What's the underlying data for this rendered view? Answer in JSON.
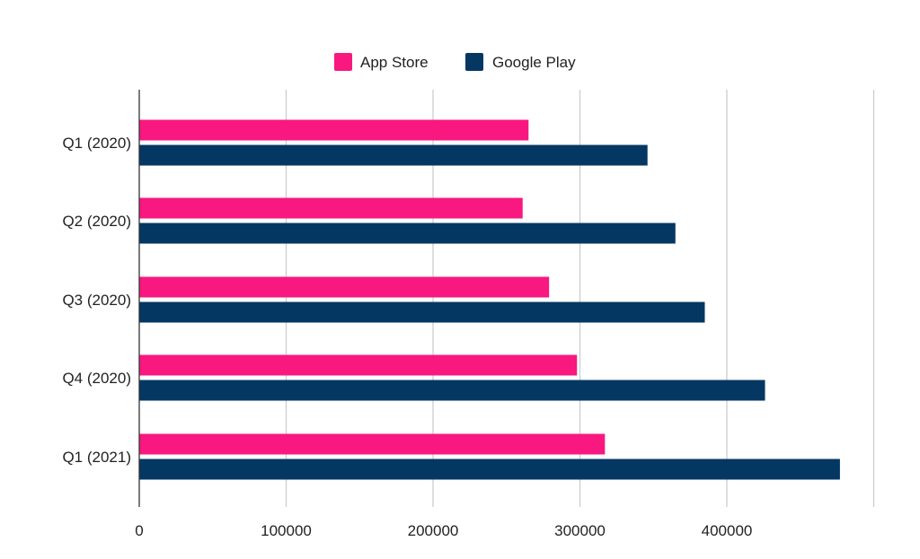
{
  "chart_data": {
    "type": "bar",
    "orientation": "horizontal",
    "categories": [
      "Q1 (2020)",
      "Q2 (2020)",
      "Q3 (2020)",
      "Q4 (2020)",
      "Q1 (2021)"
    ],
    "series": [
      {
        "name": "App Store",
        "color": "#f8187f",
        "values": [
          265000,
          261000,
          279000,
          298000,
          317000
        ]
      },
      {
        "name": "Google Play",
        "color": "#053763",
        "values": [
          346000,
          365000,
          385000,
          426000,
          477000
        ]
      }
    ],
    "xlim": [
      0,
      500000
    ],
    "xticks": [
      0,
      100000,
      200000,
      300000,
      400000
    ],
    "xtick_labels": [
      "0",
      "100000",
      "200000",
      "300000",
      "400000"
    ],
    "grid": true,
    "legend_position": "top",
    "title": "",
    "xlabel": "",
    "ylabel": ""
  }
}
